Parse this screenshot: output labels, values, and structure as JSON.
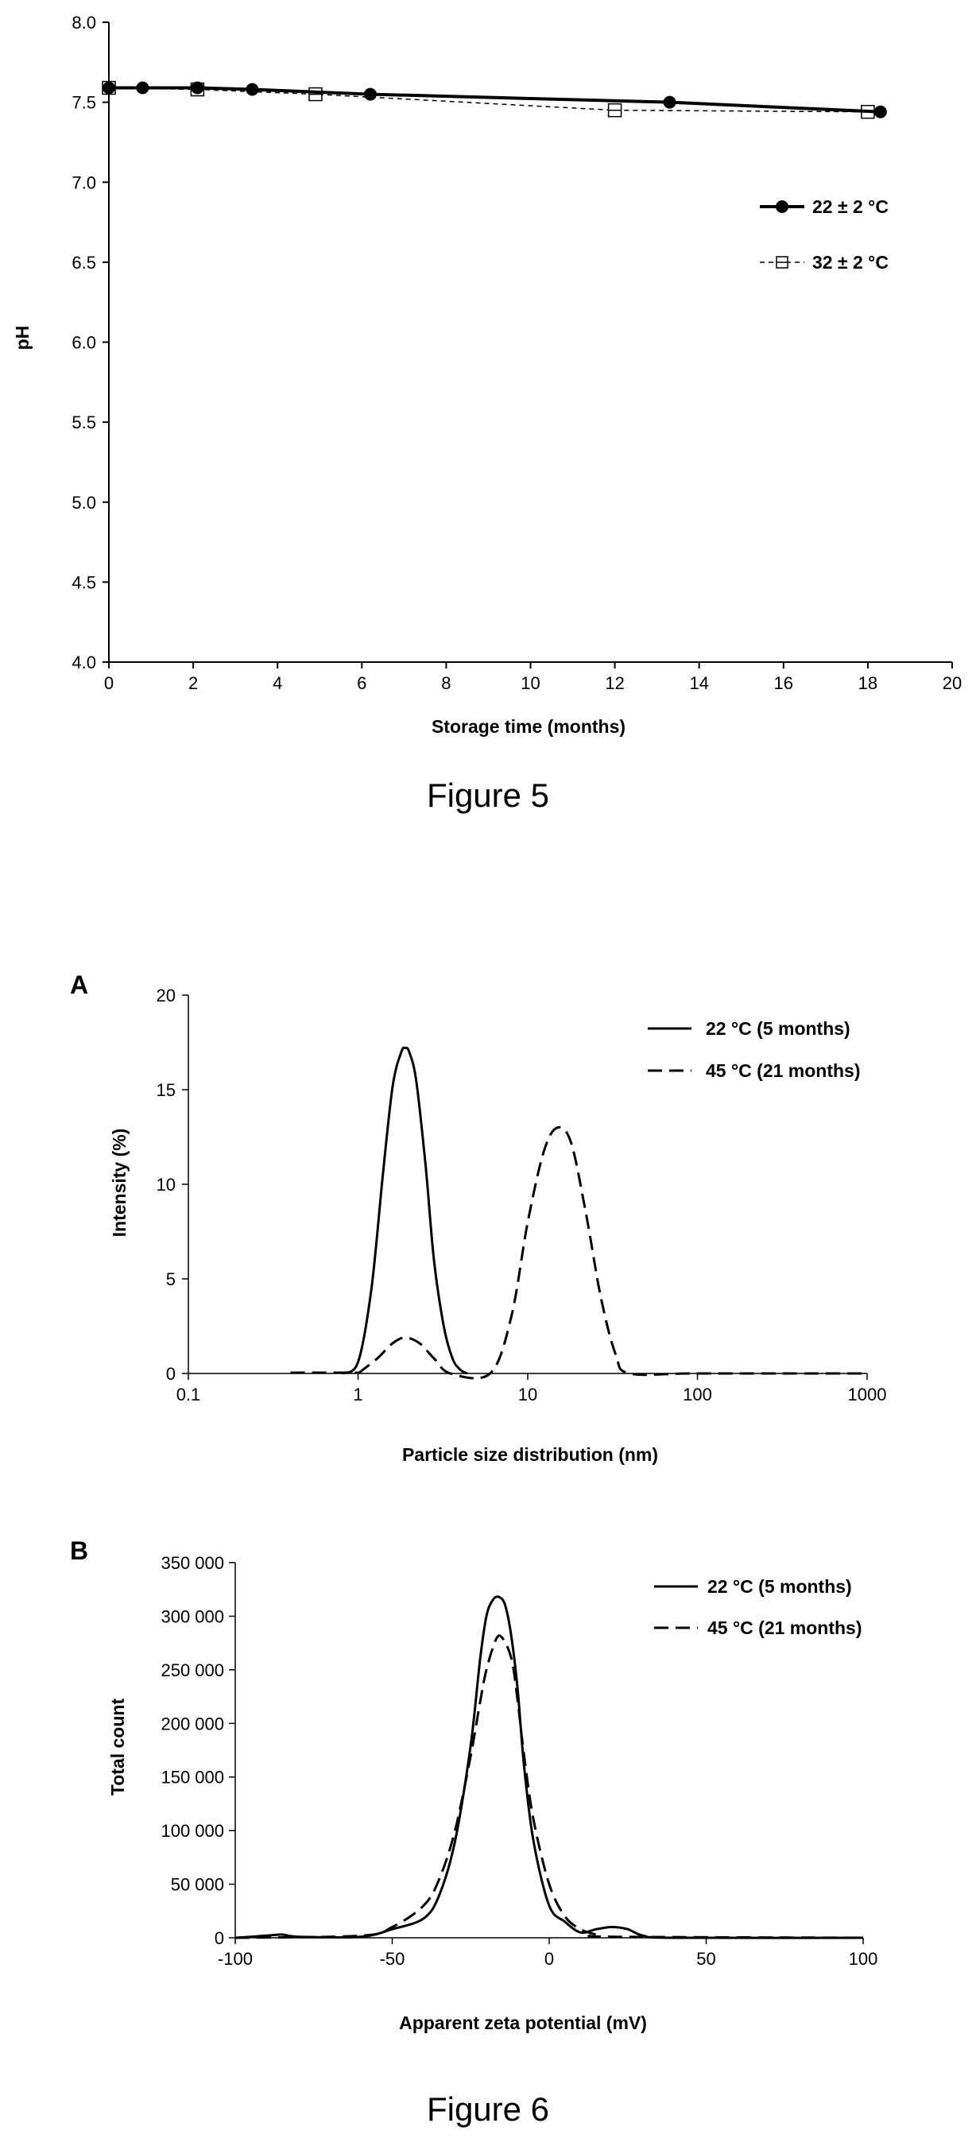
{
  "chart_data": [
    {
      "type": "line",
      "xlabel": "Storage time (months)",
      "ylabel": "pH",
      "xlim": [
        0,
        20
      ],
      "ylim": [
        4.0,
        8.0
      ],
      "x_ticks": [
        "0",
        "2",
        "4",
        "6",
        "8",
        "10",
        "12",
        "14",
        "16",
        "18",
        "20"
      ],
      "y_ticks": [
        "4.0",
        "4.5",
        "5.0",
        "5.5",
        "6.0",
        "6.5",
        "7.0",
        "7.5",
        "8.0"
      ],
      "legend_position": "right",
      "series": [
        {
          "name": "22 ± 2 °C",
          "x": [
            0,
            0.8,
            2.1,
            3.4,
            6.2,
            13.3,
            18.3
          ],
          "y": [
            7.59,
            7.59,
            7.59,
            7.58,
            7.55,
            7.5,
            7.44
          ]
        },
        {
          "name": "32 ± 2 °C",
          "x": [
            0,
            2.1,
            4.9,
            12.0,
            18.0
          ],
          "y": [
            7.59,
            7.58,
            7.55,
            7.45,
            7.44
          ]
        }
      ],
      "caption": "Figure 5"
    },
    {
      "type": "line",
      "panel_label": "A",
      "xlabel": "Particle size distribution  (nm)",
      "ylabel": "Intensity (%)",
      "x_scale": "log",
      "xlim": [
        0.1,
        1000
      ],
      "ylim": [
        0,
        20
      ],
      "x_ticks": [
        "0.1",
        "1",
        "10",
        "100",
        "1000"
      ],
      "y_ticks": [
        "0",
        "5",
        "10",
        "15",
        "20"
      ],
      "legend_position": "top-right",
      "series": [
        {
          "name": "22 °C (5 months)",
          "x": [
            0.8,
            1.0,
            1.2,
            1.4,
            1.6,
            1.8,
            1.9,
            2.0,
            2.2,
            2.5,
            2.8,
            3.2,
            3.6,
            4.0,
            4.4
          ],
          "y": [
            0,
            0.6,
            4.5,
            10.5,
            15.2,
            17.0,
            17.2,
            17.0,
            15.5,
            11.0,
            6.0,
            2.5,
            0.8,
            0.2,
            0
          ]
        },
        {
          "name": "45 °C (21 months)",
          "x": [
            1.0,
            1.3,
            1.6,
            1.9,
            2.3,
            2.8,
            3.5,
            6.0,
            8.0,
            10.0,
            12.5,
            15.0,
            18.0,
            22.0,
            27.0,
            33.0,
            40.0,
            100,
            1000
          ],
          "y": [
            0,
            0.8,
            1.6,
            1.9,
            1.6,
            0.8,
            0,
            0,
            3.0,
            8.0,
            11.8,
            13.0,
            12.2,
            8.5,
            4.0,
            1.0,
            0,
            0,
            0
          ]
        }
      ]
    },
    {
      "type": "line",
      "panel_label": "B",
      "xlabel": "Apparent zeta potential  (mV)",
      "ylabel": "Total count",
      "xlim": [
        -100,
        100
      ],
      "ylim": [
        0,
        350000
      ],
      "x_ticks": [
        "-100",
        "-50",
        "0",
        "50",
        "100"
      ],
      "y_ticks": [
        "0",
        "50 000",
        "100 000",
        "150 000",
        "200 000",
        "250 000",
        "300 000",
        "350 000"
      ],
      "legend_position": "top-right",
      "series": [
        {
          "name": "22 °C (5 months)",
          "x": [
            -100,
            -90,
            -85,
            -80,
            -60,
            -50,
            -40,
            -35,
            -30,
            -25,
            -22,
            -20,
            -18,
            -16,
            -14,
            -12,
            -10,
            -8,
            -5,
            0,
            5,
            10,
            15,
            20,
            25,
            30,
            40,
            100
          ],
          "y": [
            0,
            2000,
            3000,
            1000,
            1000,
            8000,
            18000,
            40000,
            90000,
            180000,
            260000,
            300000,
            315000,
            318000,
            310000,
            280000,
            230000,
            160000,
            90000,
            30000,
            15000,
            5000,
            8000,
            10000,
            8000,
            2000,
            0,
            0
          ]
        },
        {
          "name": "45 °C (21 months)",
          "x": [
            -100,
            -60,
            -50,
            -40,
            -35,
            -30,
            -25,
            -22,
            -20,
            -17,
            -15,
            -12,
            -10,
            -8,
            -5,
            0,
            5,
            10,
            15,
            20,
            100
          ],
          "y": [
            0,
            2000,
            10000,
            30000,
            55000,
            100000,
            170000,
            220000,
            250000,
            278000,
            280000,
            260000,
            220000,
            170000,
            110000,
            50000,
            20000,
            8000,
            3000,
            1000,
            0
          ]
        }
      ],
      "caption": "Figure 6"
    }
  ]
}
